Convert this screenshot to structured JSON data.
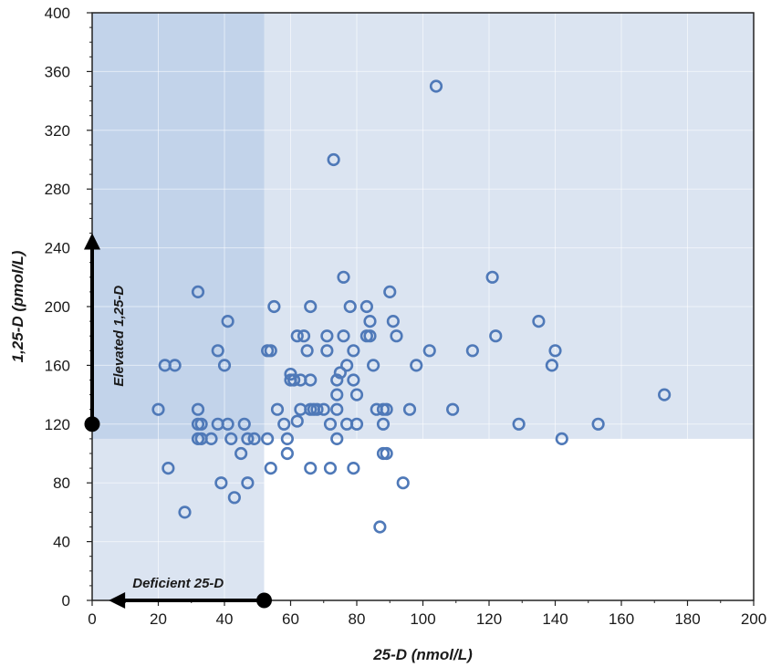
{
  "chart_data": {
    "type": "scatter",
    "title": "",
    "xlabel": "25-D (nmol/L)",
    "ylabel": "1,25-D (pmol/L)",
    "xlim": [
      0,
      200
    ],
    "ylim": [
      0,
      400
    ],
    "x_ticks": [
      "0",
      "20",
      "40",
      "60",
      "80",
      "100",
      "120",
      "140",
      "160",
      "180",
      "200"
    ],
    "y_ticks": [
      "0",
      "40",
      "80",
      "120",
      "160",
      "200",
      "240",
      "280",
      "320",
      "360",
      "400"
    ],
    "grid": true,
    "regions": {
      "deficient_25d_below": 52,
      "elevated_125d_above": 110
    },
    "annotations": {
      "elevated": "Elevated 1,25-D",
      "deficient": "Deficient 25-D"
    },
    "colors": {
      "marker": "#4f79b8",
      "region_light": "#dbe4f1",
      "region_overlap": "#c2d3ea",
      "arrow": "#000000"
    },
    "points": [
      [
        20,
        130
      ],
      [
        22,
        160
      ],
      [
        23,
        90
      ],
      [
        25,
        160
      ],
      [
        28,
        60
      ],
      [
        32,
        210
      ],
      [
        32,
        130
      ],
      [
        32,
        120
      ],
      [
        32,
        110
      ],
      [
        33,
        120
      ],
      [
        33,
        110
      ],
      [
        36,
        110
      ],
      [
        38,
        170
      ],
      [
        38,
        120
      ],
      [
        39,
        80
      ],
      [
        40,
        160
      ],
      [
        41,
        190
      ],
      [
        41,
        120
      ],
      [
        42,
        110
      ],
      [
        43,
        70
      ],
      [
        45,
        100
      ],
      [
        46,
        120
      ],
      [
        47,
        80
      ],
      [
        47,
        110
      ],
      [
        49,
        110
      ],
      [
        53,
        110
      ],
      [
        53,
        170
      ],
      [
        54,
        170
      ],
      [
        54,
        90
      ],
      [
        55,
        200
      ],
      [
        56,
        130
      ],
      [
        58,
        120
      ],
      [
        59,
        110
      ],
      [
        59,
        100
      ],
      [
        60,
        150
      ],
      [
        60,
        154
      ],
      [
        61,
        150
      ],
      [
        62,
        180
      ],
      [
        62,
        122
      ],
      [
        63,
        150
      ],
      [
        63,
        130
      ],
      [
        64,
        180
      ],
      [
        65,
        170
      ],
      [
        66,
        200
      ],
      [
        66,
        130
      ],
      [
        66,
        150
      ],
      [
        66,
        90
      ],
      [
        67,
        130
      ],
      [
        68,
        130
      ],
      [
        70,
        130
      ],
      [
        71,
        180
      ],
      [
        71,
        170
      ],
      [
        72,
        120
      ],
      [
        72,
        90
      ],
      [
        73,
        300
      ],
      [
        74,
        150
      ],
      [
        74,
        140
      ],
      [
        74,
        130
      ],
      [
        74,
        110
      ],
      [
        75,
        155
      ],
      [
        76,
        220
      ],
      [
        76,
        180
      ],
      [
        77,
        160
      ],
      [
        77,
        120
      ],
      [
        78,
        200
      ],
      [
        79,
        170
      ],
      [
        79,
        150
      ],
      [
        79,
        90
      ],
      [
        80,
        140
      ],
      [
        80,
        120
      ],
      [
        83,
        200
      ],
      [
        83,
        180
      ],
      [
        84,
        190
      ],
      [
        84,
        180
      ],
      [
        85,
        160
      ],
      [
        86,
        130
      ],
      [
        87,
        50
      ],
      [
        88,
        130
      ],
      [
        88,
        120
      ],
      [
        88,
        100
      ],
      [
        89,
        100
      ],
      [
        89,
        130
      ],
      [
        90,
        210
      ],
      [
        91,
        190
      ],
      [
        92,
        180
      ],
      [
        94,
        80
      ],
      [
        96,
        130
      ],
      [
        98,
        160
      ],
      [
        102,
        170
      ],
      [
        104,
        350
      ],
      [
        109,
        130
      ],
      [
        115,
        170
      ],
      [
        121,
        220
      ],
      [
        122,
        180
      ],
      [
        129,
        120
      ],
      [
        135,
        190
      ],
      [
        139,
        160
      ],
      [
        140,
        170
      ],
      [
        142,
        110
      ],
      [
        153,
        120
      ],
      [
        173,
        140
      ]
    ]
  }
}
